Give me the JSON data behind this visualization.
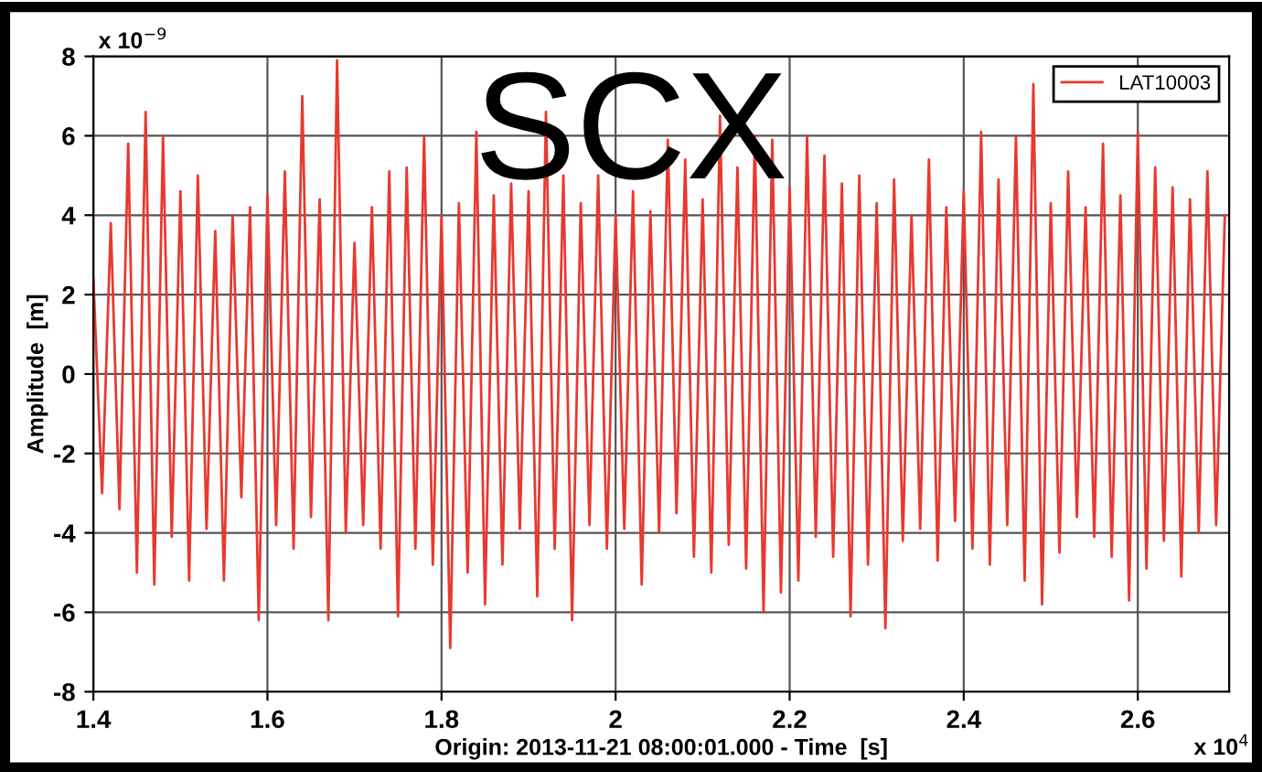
{
  "chart_data": {
    "type": "line",
    "xlabel": "Origin: 2013-11-21 08:00:01.000 - Time  [s]",
    "ylabel": "Amplitude  [m]",
    "annotations": [
      "SCX",
      "x 10$^{−9}$",
      "x 10$^{4}$"
    ],
    "x": [
      1.4,
      1.41,
      1.42,
      1.43,
      1.44,
      1.45,
      1.46,
      1.47,
      1.48,
      1.49,
      1.5,
      1.51,
      1.52,
      1.53,
      1.54,
      1.55,
      1.56,
      1.57,
      1.58,
      1.59,
      1.6,
      1.61,
      1.62,
      1.63,
      1.64,
      1.65,
      1.66,
      1.67,
      1.68,
      1.69,
      1.7,
      1.71,
      1.72,
      1.73,
      1.74,
      1.75,
      1.76,
      1.77,
      1.78,
      1.79,
      1.8,
      1.81,
      1.82,
      1.83,
      1.84,
      1.85,
      1.86,
      1.87,
      1.88,
      1.89,
      1.9,
      1.91,
      1.92,
      1.93,
      1.94,
      1.95,
      1.96,
      1.97,
      1.98,
      1.99,
      2.0,
      2.01,
      2.02,
      2.03,
      2.04,
      2.05,
      2.06,
      2.07,
      2.08,
      2.09,
      2.1,
      2.11,
      2.12,
      2.13,
      2.14,
      2.15,
      2.16,
      2.17,
      2.18,
      2.19,
      2.2,
      2.21,
      2.22,
      2.23,
      2.24,
      2.25,
      2.26,
      2.27,
      2.28,
      2.29,
      2.3,
      2.31,
      2.32,
      2.33,
      2.34,
      2.35,
      2.36,
      2.37,
      2.38,
      2.39,
      2.4,
      2.41,
      2.42,
      2.43,
      2.44,
      2.45,
      2.46,
      2.47,
      2.48,
      2.49,
      2.5,
      2.51,
      2.52,
      2.53,
      2.54,
      2.55,
      2.56,
      2.57,
      2.58,
      2.59,
      2.6,
      2.61,
      2.62,
      2.63,
      2.64,
      2.65,
      2.66,
      2.67,
      2.68,
      2.69,
      2.7
    ],
    "series": [
      {
        "name": "LAT10003",
        "color": "#e8392f",
        "values": [
          2.4,
          -3.0,
          3.8,
          -3.4,
          5.8,
          -5.0,
          6.6,
          -5.3,
          6.0,
          -4.1,
          4.6,
          -5.2,
          5.0,
          -3.9,
          3.6,
          -5.2,
          4.0,
          -3.1,
          4.2,
          -6.2,
          4.5,
          -3.8,
          5.1,
          -4.4,
          7.0,
          -3.6,
          4.4,
          -6.2,
          7.9,
          -4.0,
          3.3,
          -3.8,
          4.2,
          -4.4,
          5.1,
          -6.1,
          5.2,
          -4.4,
          6.0,
          -4.8,
          4.0,
          -6.9,
          4.3,
          -5.0,
          6.1,
          -5.8,
          4.5,
          -4.8,
          4.8,
          -3.9,
          4.6,
          -5.6,
          6.6,
          -4.4,
          5.0,
          -6.2,
          4.3,
          -3.8,
          5.0,
          -4.4,
          4.0,
          -3.9,
          4.6,
          -5.3,
          4.1,
          -4.0,
          5.9,
          -3.5,
          5.4,
          -4.6,
          4.4,
          -5.0,
          6.5,
          -4.3,
          5.2,
          -4.9,
          6.0,
          -6.0,
          5.9,
          -5.5,
          4.7,
          -5.2,
          6.0,
          -4.1,
          5.5,
          -4.6,
          4.8,
          -6.1,
          5.0,
          -4.8,
          4.3,
          -6.4,
          4.9,
          -4.2,
          4.0,
          -3.9,
          5.4,
          -4.7,
          4.2,
          -3.7,
          4.6,
          -4.4,
          6.1,
          -4.8,
          4.9,
          -3.8,
          6.0,
          -5.2,
          7.3,
          -5.8,
          4.3,
          -4.5,
          5.1,
          -3.6,
          4.2,
          -4.1,
          5.8,
          -4.6,
          4.5,
          -5.7,
          6.1,
          -4.9,
          5.2,
          -4.2,
          4.7,
          -5.1,
          4.4,
          -4.0,
          5.1,
          -3.8,
          4.0
        ]
      }
    ],
    "xlim": [
      1.4,
      2.705
    ],
    "xticks": [
      1.4,
      1.6,
      1.8,
      2,
      2.2,
      2.4,
      2.6
    ],
    "ylim": [
      -8,
      8
    ],
    "yticks": [
      -8,
      -6,
      -4,
      -2,
      0,
      2,
      4,
      6,
      8
    ],
    "grid": true,
    "legend": "top right",
    "marker": "none",
    "line_style": "solid"
  }
}
